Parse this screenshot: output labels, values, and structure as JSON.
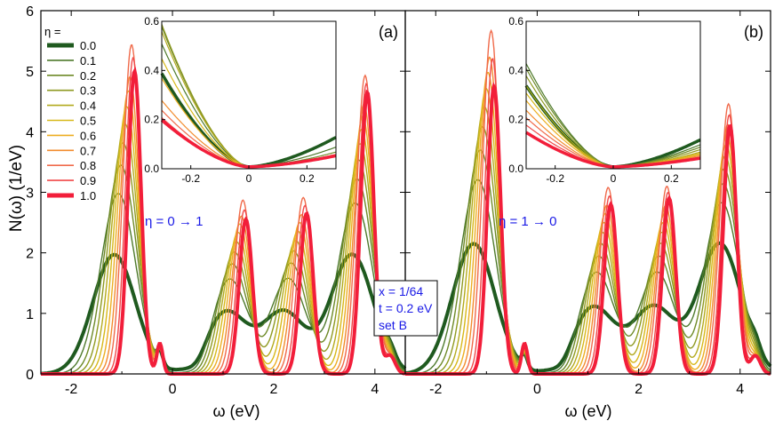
{
  "figure": {
    "y_axis_label": "N(ω) (1/eV)",
    "x_axis_label": "ω (eV)",
    "info_box": [
      "x = 1/64",
      "t = 0.2 eV",
      "set B"
    ],
    "legend_title": "η =",
    "legend_entries": [
      "0.0",
      "0.1",
      "0.2",
      "0.3",
      "0.4",
      "0.5",
      "0.6",
      "0.7",
      "0.8",
      "0.9",
      "1.0"
    ],
    "series_colors": [
      "#1f5a1f",
      "#4e7a2c",
      "#6e8a28",
      "#8f9a22",
      "#b3aa1e",
      "#d7b81a",
      "#ecae22",
      "#f28c2e",
      "#f06a4a",
      "#f04a4a",
      "#f21e3a"
    ],
    "text_color": "#1a1ae6"
  },
  "chart_data": [
    {
      "type": "line",
      "panel_label": "(a)",
      "annotation": "η = 0 → 1",
      "xlabel": "ω (eV)",
      "ylabel": "N(ω) (1/eV)",
      "xlim": [
        -2.6,
        4.6
      ],
      "ylim": [
        0,
        6
      ],
      "xticks": [
        -2,
        0,
        2,
        4
      ],
      "yticks": [
        0,
        1,
        2,
        3,
        4,
        5,
        6
      ],
      "series_endpoints": {
        "eta_0.0": {
          "peaks": [
            {
              "x": -1.15,
              "y": 1.97
            },
            {
              "x": 1.05,
              "y": 1.02
            },
            {
              "x": 2.2,
              "y": 1.02
            },
            {
              "x": 3.55,
              "y": 1.97
            }
          ]
        },
        "eta_1.0": {
          "peaks": [
            {
              "x": -0.75,
              "y": 5.0
            },
            {
              "x": 1.45,
              "y": 2.55
            },
            {
              "x": 2.65,
              "y": 2.65
            },
            {
              "x": 3.85,
              "y": 4.65
            }
          ]
        },
        "max_peaks": [
          5.55,
          2.95,
          2.98,
          5.0
        ]
      },
      "inset": {
        "xlim": [
          -0.3,
          0.3
        ],
        "ylim": [
          0,
          0.6
        ],
        "xticks": [
          -0.2,
          0,
          0.2
        ],
        "yticks": [
          0,
          0.2,
          0.4,
          0.6
        ],
        "left_values": [
          0.38,
          0.5,
          0.57,
          0.58,
          0.55,
          0.44,
          0.36,
          0.27,
          0.23,
          0.2,
          0.19
        ],
        "right_values": [
          0.12,
          0.08,
          0.06,
          0.05,
          0.05,
          0.05,
          0.05,
          0.05,
          0.05,
          0.05,
          0.045
        ]
      }
    },
    {
      "type": "line",
      "panel_label": "(b)",
      "annotation": "η = 1 → 0",
      "xlabel": "ω (eV)",
      "ylabel": "",
      "xlim": [
        -2.6,
        4.6
      ],
      "ylim": [
        0,
        6
      ],
      "xticks": [
        -2,
        0,
        2,
        4
      ],
      "yticks": [
        0,
        1,
        2,
        3,
        4,
        5,
        6
      ],
      "series_endpoints": {
        "eta_0.0": {
          "peaks": [
            {
              "x": -1.25,
              "y": 2.15
            },
            {
              "x": 1.1,
              "y": 1.1
            },
            {
              "x": 2.3,
              "y": 1.1
            },
            {
              "x": 3.6,
              "y": 2.15
            }
          ]
        },
        "eta_1.0": {
          "peaks": [
            {
              "x": -0.85,
              "y": 4.75
            },
            {
              "x": 1.45,
              "y": 2.8
            },
            {
              "x": 2.6,
              "y": 2.9
            },
            {
              "x": 3.8,
              "y": 4.1
            }
          ]
        },
        "max_peaks": [
          5.9,
          3.15,
          3.15,
          4.55
        ]
      },
      "inset": {
        "xlim": [
          -0.3,
          0.3
        ],
        "ylim": [
          0,
          0.6
        ],
        "xticks": [
          -0.2,
          0,
          0.2
        ],
        "yticks": [
          0,
          0.2,
          0.4,
          0.6
        ],
        "left_values": [
          0.33,
          0.42,
          0.4,
          0.37,
          0.33,
          0.3,
          0.27,
          0.23,
          0.2,
          0.17,
          0.14
        ],
        "right_values": [
          0.11,
          0.09,
          0.08,
          0.07,
          0.06,
          0.055,
          0.05,
          0.045,
          0.04,
          0.035,
          0.035
        ]
      }
    }
  ]
}
